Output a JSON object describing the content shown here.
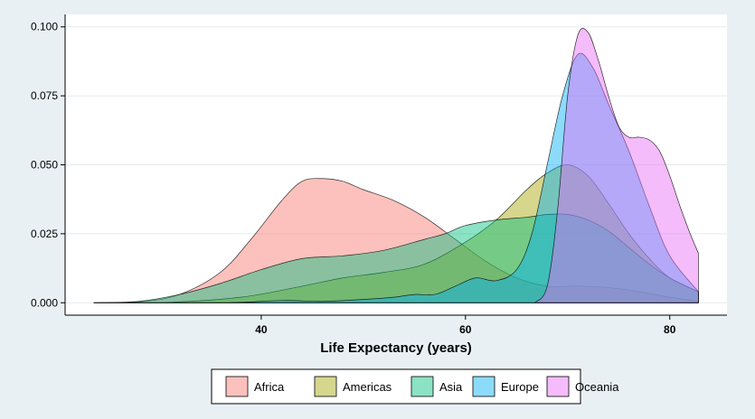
{
  "chart_data": {
    "type": "area",
    "title": "",
    "xlabel": "Life Expectancy (years)",
    "ylabel": "",
    "xlim": [
      20.8,
      85.6
    ],
    "ylim": [
      -0.0045,
      0.1045
    ],
    "x_ticks": [
      40,
      60,
      80
    ],
    "x_tick_labels": [
      "40",
      "60",
      "80"
    ],
    "y_ticks": [
      0,
      0.025,
      0.05,
      0.075,
      0.1
    ],
    "y_tick_labels": [
      "0.000",
      "0.025",
      "0.050",
      "0.075",
      "0.100"
    ],
    "grid": "horizontal",
    "legend_position": "bottom",
    "colors": {
      "background": "#e9f0f3",
      "panel": "#ffffff",
      "grid": "#e6eaec",
      "outline": "#000000"
    },
    "series": [
      {
        "name": "Africa",
        "color": "#f8766d",
        "x": [
          23.6,
          28,
          32,
          36,
          39,
          42,
          44,
          46,
          48,
          50,
          53,
          56,
          59,
          62,
          65,
          68,
          71,
          74,
          77,
          80,
          82.8
        ],
        "y": [
          0,
          0.0003,
          0.003,
          0.011,
          0.023,
          0.037,
          0.044,
          0.045,
          0.044,
          0.041,
          0.037,
          0.031,
          0.023,
          0.015,
          0.009,
          0.006,
          0.006,
          0.0055,
          0.004,
          0.002,
          0.0005
        ]
      },
      {
        "name": "Americas",
        "color": "#a3a500",
        "x": [
          23.6,
          30,
          38,
          44,
          48,
          52,
          56,
          60,
          63,
          66,
          68,
          70,
          72,
          74,
          76,
          78,
          80,
          82.8
        ],
        "y": [
          0,
          0,
          0.002,
          0.006,
          0.009,
          0.011,
          0.014,
          0.022,
          0.03,
          0.041,
          0.047,
          0.05,
          0.046,
          0.036,
          0.025,
          0.016,
          0.009,
          0.004
        ]
      },
      {
        "name": "Asia",
        "color": "#00bf7d",
        "x": [
          23.6,
          28,
          32,
          36,
          40,
          44,
          48,
          52,
          56,
          58,
          60,
          63,
          66,
          68,
          70,
          72,
          74,
          76,
          78,
          80,
          82.8
        ],
        "y": [
          0,
          0.0005,
          0.003,
          0.007,
          0.012,
          0.016,
          0.017,
          0.019,
          0.023,
          0.025,
          0.028,
          0.03,
          0.031,
          0.032,
          0.032,
          0.03,
          0.026,
          0.02,
          0.014,
          0.009,
          0.004
        ]
      },
      {
        "name": "Europe",
        "color": "#00b0f6",
        "x": [
          23.6,
          36,
          42,
          46,
          50,
          53,
          55,
          57,
          59,
          61,
          63,
          65,
          66.5,
          68,
          69.5,
          71,
          72.5,
          74,
          76,
          78,
          80,
          82.8
        ],
        "y": [
          0,
          0,
          0.0008,
          0.0005,
          0.0012,
          0.002,
          0.003,
          0.003,
          0.006,
          0.009,
          0.008,
          0.012,
          0.025,
          0.05,
          0.075,
          0.09,
          0.085,
          0.072,
          0.055,
          0.035,
          0.017,
          0.004
        ]
      },
      {
        "name": "Oceania",
        "color": "#e76bf3",
        "x": [
          66.8,
          68,
          69,
          70,
          71,
          72,
          73,
          74,
          75,
          76,
          77,
          78,
          79,
          80,
          81,
          82,
          82.8
        ],
        "y": [
          0,
          0.006,
          0.033,
          0.075,
          0.097,
          0.098,
          0.088,
          0.075,
          0.064,
          0.06,
          0.06,
          0.059,
          0.055,
          0.046,
          0.035,
          0.025,
          0.018
        ]
      }
    ]
  }
}
